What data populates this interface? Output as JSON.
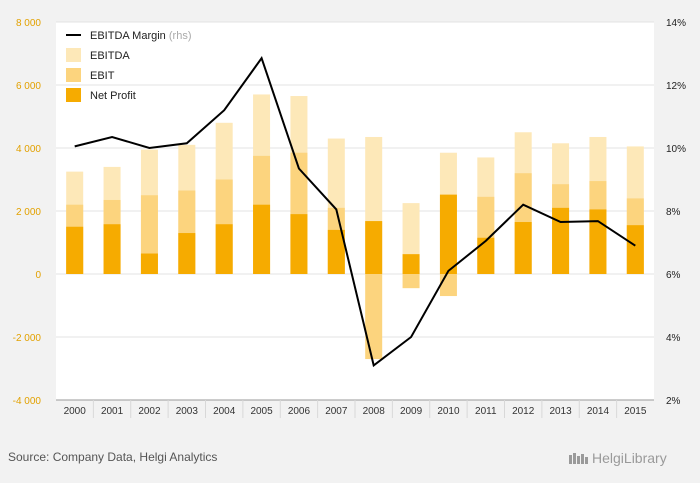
{
  "chart_data": {
    "type": "bar",
    "categories": [
      "2000",
      "2001",
      "2002",
      "2003",
      "2004",
      "2005",
      "2006",
      "2007",
      "2008",
      "2009",
      "2010",
      "2011",
      "2012",
      "2013",
      "2014",
      "2015"
    ],
    "series": [
      {
        "name": "EBITDA",
        "values": [
          3250,
          3400,
          3950,
          4100,
          4800,
          5700,
          5650,
          4300,
          4350,
          2250,
          3850,
          3700,
          4500,
          4150,
          4350,
          4050
        ],
        "color": "#fde8b8"
      },
      {
        "name": "EBIT",
        "values": [
          2200,
          2350,
          2500,
          2650,
          3000,
          3750,
          3850,
          2100,
          -2700,
          -450,
          -700,
          2450,
          3200,
          2850,
          2950,
          2400
        ],
        "color": "#fcd47e"
      },
      {
        "name": "Net Profit",
        "values": [
          1500,
          1580,
          650,
          1300,
          1580,
          2200,
          1900,
          1400,
          1680,
          630,
          2520,
          1150,
          1650,
          2100,
          2050,
          1550
        ],
        "color": "#f6ab00"
      },
      {
        "name": "EBITDA Margin",
        "axis": "rhs",
        "values": [
          10.05,
          10.35,
          10.0,
          10.15,
          11.2,
          12.85,
          9.35,
          8.05,
          3.1,
          4.0,
          6.1,
          7.05,
          8.2,
          7.65,
          7.68,
          6.9
        ],
        "color": "#000000"
      }
    ],
    "yaxis_left": {
      "min": -4000,
      "max": 8000,
      "ticks": [
        "-4 000",
        "-2 000",
        "0",
        "2 000",
        "4 000",
        "6 000",
        "8 000"
      ],
      "tick_values": [
        -4000,
        -2000,
        0,
        2000,
        4000,
        6000,
        8000
      ],
      "color": "#e2a100"
    },
    "yaxis_right": {
      "min": 2,
      "max": 14,
      "ticks": [
        "2%",
        "4%",
        "6%",
        "8%",
        "10%",
        "12%",
        "14%"
      ],
      "tick_values": [
        2,
        4,
        6,
        8,
        10,
        12,
        14
      ]
    },
    "legend": {
      "placement": "top-left",
      "items": [
        {
          "label": "EBITDA Margin",
          "suffix": "(rhs)",
          "kind": "line",
          "color": "#000000"
        },
        {
          "label": "EBITDA",
          "kind": "box",
          "color": "#fde8b8"
        },
        {
          "label": "EBIT",
          "kind": "box",
          "color": "#fcd47e"
        },
        {
          "label": "Net Profit",
          "kind": "box",
          "color": "#f6ab00"
        }
      ]
    },
    "grid": true
  },
  "footer": {
    "source": "Source: Company Data, Helgi Analytics",
    "logo_text": "HelgiLibrary"
  }
}
